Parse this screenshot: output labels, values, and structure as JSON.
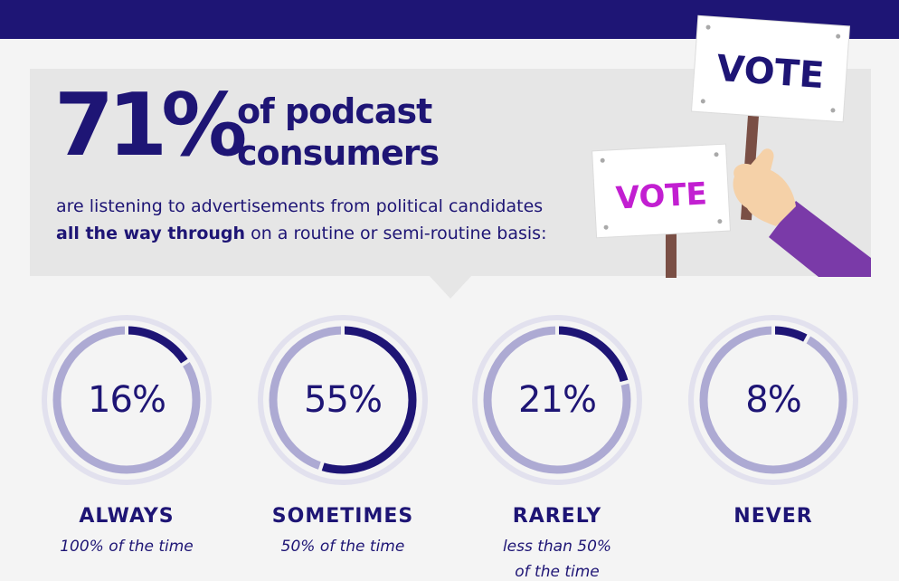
{
  "header": {
    "big_percent": "71%",
    "headline_line1": "of podcast",
    "headline_line2": "consumers",
    "sub_line1": "are listening to advertisements from political candidates",
    "sub_bold": "all the way through",
    "sub_rest": " on a routine or semi-routine basis:"
  },
  "signs": {
    "big_sign": "VOTE",
    "small_sign": "VOTE"
  },
  "colors": {
    "accent": "#1e1575",
    "ring_light": "#adaad3",
    "ring_outer": "#e2e1ee",
    "sign_text_small": "#c21fd1",
    "sleeve": "#7a3aa8"
  },
  "chart_data": {
    "type": "donut",
    "items": [
      {
        "label": "ALWAYS",
        "display": "16%",
        "value": 16,
        "desc": [
          "100% of the time"
        ]
      },
      {
        "label": "SOMETIMES",
        "display": "55%",
        "value": 55,
        "desc": [
          "50% of the time"
        ]
      },
      {
        "label": "RARELY",
        "display": "21%",
        "value": 21,
        "desc": [
          "less than 50%",
          "of the time"
        ]
      },
      {
        "label": "NEVER",
        "display": "8%",
        "value": 8,
        "desc": []
      }
    ]
  }
}
